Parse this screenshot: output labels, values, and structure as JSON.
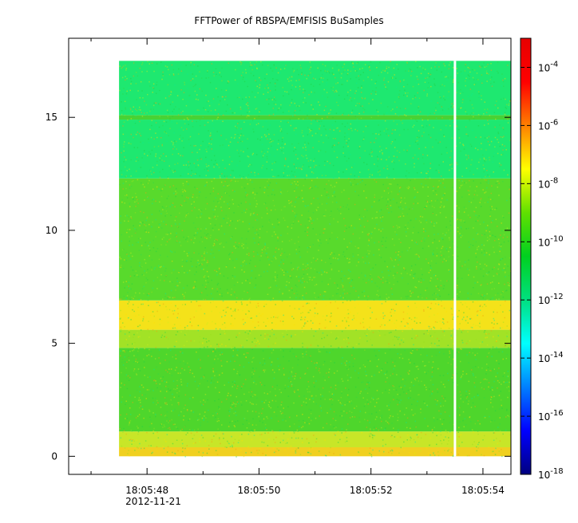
{
  "chart_data": {
    "type": "heatmap",
    "title": "FFTPower of RBSPA/EMFISIS  BuSamples",
    "xlabel": "",
    "ylabel": "",
    "x_range": [
      "18:05:46.6",
      "18:05:54.5"
    ],
    "y_range": [
      -0.8,
      18.5
    ],
    "data_extent": {
      "x_start": "18:05:47.5",
      "x_end": "18:05:54.5",
      "y_min": 0,
      "y_max": 17.5
    },
    "gap": {
      "time": "18:05:53.5"
    },
    "x_ticks": [
      {
        "label": "18:05:48",
        "sublabel": "2012-11-21",
        "t": 48
      },
      {
        "label": "18:05:50",
        "sublabel": "",
        "t": 50
      },
      {
        "label": "18:05:52",
        "sublabel": "",
        "t": 52
      },
      {
        "label": "18:05:54",
        "sublabel": "",
        "t": 54
      }
    ],
    "x_minor_ticks": [
      47,
      49,
      51,
      53
    ],
    "y_ticks": [
      {
        "label": "0",
        "value": 0
      },
      {
        "label": "5",
        "value": 5
      },
      {
        "label": "10",
        "value": 10
      },
      {
        "label": "15",
        "value": 15
      }
    ],
    "bands": [
      {
        "y0": 0.0,
        "y1": 0.4,
        "color": "#f0d020"
      },
      {
        "y0": 0.4,
        "y1": 1.1,
        "color": "#c8e628"
      },
      {
        "y0": 1.1,
        "y1": 4.8,
        "color": "#4ed62c"
      },
      {
        "y0": 4.8,
        "y1": 5.6,
        "color": "#a2e226"
      },
      {
        "y0": 5.6,
        "y1": 6.9,
        "color": "#f4e21a"
      },
      {
        "y0": 6.9,
        "y1": 12.3,
        "color": "#58da2c"
      },
      {
        "y0": 12.3,
        "y1": 14.9,
        "color": "#1ee870"
      },
      {
        "y0": 14.9,
        "y1": 15.1,
        "color": "#48d234"
      },
      {
        "y0": 15.1,
        "y1": 17.5,
        "color": "#1ee870"
      }
    ],
    "colorbar": {
      "scale": "log",
      "range": [
        1e-18,
        0.001
      ],
      "stops": [
        "#00007f",
        "#0000ff",
        "#007fff",
        "#00ffff",
        "#00e080",
        "#00d020",
        "#60e000",
        "#ffff00",
        "#ff8000",
        "#ff0000",
        "#e60000"
      ],
      "ticks": [
        {
          "base": "10",
          "exp": "-4"
        },
        {
          "base": "10",
          "exp": "-6"
        },
        {
          "base": "10",
          "exp": "-8"
        },
        {
          "base": "10",
          "exp": "-10"
        },
        {
          "base": "10",
          "exp": "-12"
        },
        {
          "base": "10",
          "exp": "-14"
        },
        {
          "base": "10",
          "exp": "-16"
        },
        {
          "base": "10",
          "exp": "-18"
        }
      ],
      "tick_values": [
        -4,
        -6,
        -8,
        -10,
        -12,
        -14,
        -16,
        -18
      ]
    }
  }
}
